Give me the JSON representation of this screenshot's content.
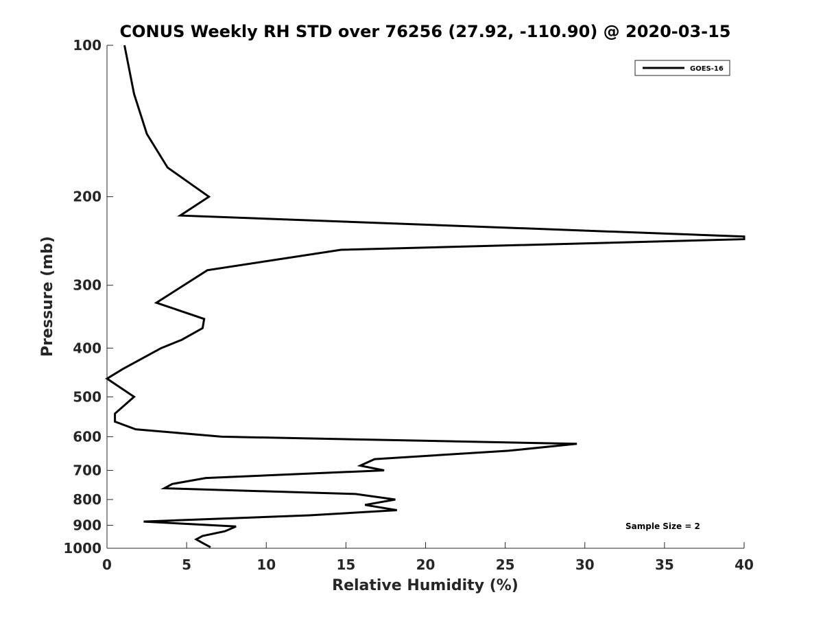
{
  "chart_data": {
    "type": "line",
    "title": "CONUS Weekly RH STD over 76256 (27.92, -110.90) @ 2020-03-15",
    "xlabel": "Relative Humidity (%)",
    "ylabel": "Pressure (mb)",
    "xlim": [
      0,
      40
    ],
    "ylim": [
      100,
      1000
    ],
    "y_scale": "log",
    "y_reversed": true,
    "grid": false,
    "legend_position": "top-right",
    "x_ticks": [
      0,
      5,
      10,
      15,
      20,
      25,
      30,
      35,
      40
    ],
    "x_tick_labels": [
      "0",
      "5",
      "10",
      "15",
      "20",
      "25",
      "30",
      "35",
      "40"
    ],
    "y_ticks": [
      100,
      200,
      300,
      400,
      500,
      600,
      700,
      800,
      900,
      1000
    ],
    "y_tick_labels": [
      "100",
      "200",
      "300",
      "400",
      "500",
      "600",
      "700",
      "800",
      "900",
      "1000"
    ],
    "annotation": "Sample Size = 2",
    "series": [
      {
        "name": "GOES-16",
        "color": "#000000",
        "points": [
          [
            1.1,
            100
          ],
          [
            1.7,
            125
          ],
          [
            2.5,
            150
          ],
          [
            3.8,
            175
          ],
          [
            5.4,
            190
          ],
          [
            6.4,
            200
          ],
          [
            4.6,
            218
          ],
          [
            40.0,
            240
          ],
          [
            40.0,
            243
          ],
          [
            14.7,
            255
          ],
          [
            6.3,
            280
          ],
          [
            3.1,
            325
          ],
          [
            6.1,
            350
          ],
          [
            6.0,
            365
          ],
          [
            4.7,
            385
          ],
          [
            3.4,
            400
          ],
          [
            1.0,
            440
          ],
          [
            0.0,
            460
          ],
          [
            1.7,
            500
          ],
          [
            0.5,
            540
          ],
          [
            0.5,
            560
          ],
          [
            1.8,
            580
          ],
          [
            7.2,
            600
          ],
          [
            29.5,
            620
          ],
          [
            25.2,
            640
          ],
          [
            16.8,
            665
          ],
          [
            15.9,
            685
          ],
          [
            17.4,
            700
          ],
          [
            6.2,
            725
          ],
          [
            4.1,
            745
          ],
          [
            3.6,
            760
          ],
          [
            15.6,
            780
          ],
          [
            18.1,
            800
          ],
          [
            16.2,
            820
          ],
          [
            18.2,
            840
          ],
          [
            12.7,
            860
          ],
          [
            2.3,
            885
          ],
          [
            8.1,
            905
          ],
          [
            7.4,
            925
          ],
          [
            6.0,
            945
          ],
          [
            5.6,
            960
          ],
          [
            6.1,
            980
          ],
          [
            6.5,
            995
          ]
        ]
      }
    ]
  }
}
